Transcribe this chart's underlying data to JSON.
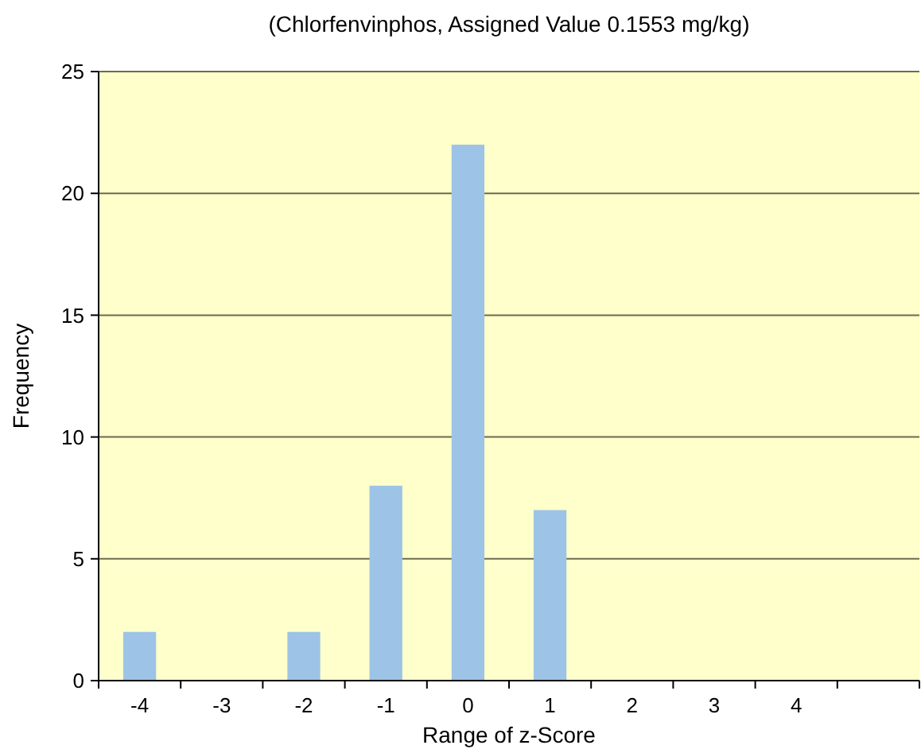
{
  "chart_data": {
    "type": "bar",
    "title": "(Chlorfenvinphos, Assigned Value 0.1553 mg/kg)",
    "xlabel": "Range of z-Score",
    "ylabel": "Frequency",
    "categories": [
      "-4",
      "-3",
      "-2",
      "-1",
      "0",
      "1",
      "2",
      "3",
      "4",
      null
    ],
    "values": [
      2,
      0,
      2,
      8,
      22,
      7,
      0,
      0,
      0,
      null
    ],
    "color": "#9dc3e6",
    "ylim": [
      0,
      25
    ],
    "yticks": [
      0,
      5,
      10,
      15,
      20,
      25
    ],
    "grid": "y"
  }
}
